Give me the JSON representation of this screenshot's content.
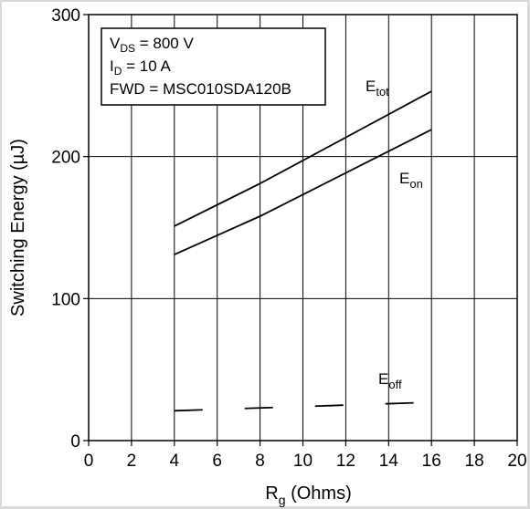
{
  "chart_data": {
    "type": "line",
    "title": "",
    "xlabel": {
      "main": "R",
      "sub": "g",
      "rest": " (Ohms)"
    },
    "ylabel": "Switching Energy (µJ)",
    "xlim": [
      0,
      20
    ],
    "ylim": [
      0,
      300
    ],
    "xticks": [
      "0",
      "2",
      "4",
      "6",
      "8",
      "10",
      "12",
      "14",
      "16",
      "18",
      "20"
    ],
    "yticks": [
      "0",
      "100",
      "200",
      "300"
    ],
    "xtick_values": [
      0,
      2,
      4,
      6,
      8,
      10,
      12,
      14,
      16,
      18,
      20
    ],
    "ytick_values": [
      0,
      100,
      200,
      300
    ],
    "grid": true,
    "conditions": [
      {
        "main": "V",
        "sub": "DS",
        "rest": " = 800 V"
      },
      {
        "main": "I",
        "sub": "D",
        "rest": " = 10 A"
      },
      {
        "main": "FWD = MSC010SDA120B",
        "sub": "",
        "rest": ""
      }
    ],
    "series": [
      {
        "label_main": "E",
        "label_sub": "tot",
        "style": "solid",
        "x": [
          4,
          8,
          16
        ],
        "y": [
          151,
          181,
          246
        ]
      },
      {
        "label_main": "E",
        "label_sub": "on",
        "style": "solid",
        "x": [
          4,
          8,
          16
        ],
        "y": [
          131,
          158,
          219
        ]
      },
      {
        "label_main": "E",
        "label_sub": "off",
        "style": "dashed",
        "x": [
          4,
          16
        ],
        "y": [
          21,
          27
        ]
      }
    ],
    "colors": {
      "line": "#000000",
      "grid": "#000000",
      "background": "#ffffff",
      "page": "#d9d9d9"
    }
  }
}
